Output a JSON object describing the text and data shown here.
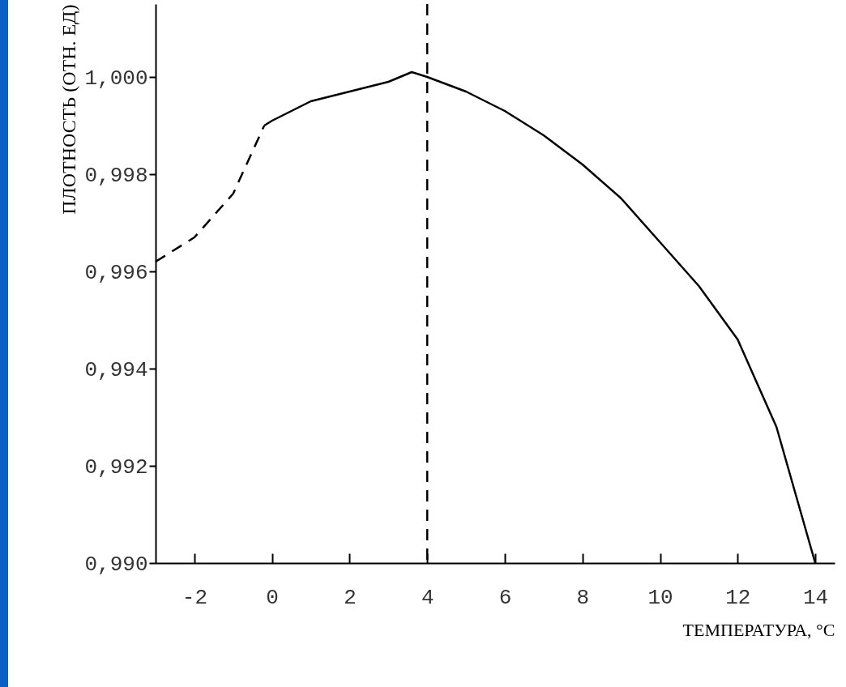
{
  "chart_data": {
    "type": "line",
    "xlabel": "ТЕМПЕРАТУРА, °C",
    "ylabel": "ПЛОТНОСТЬ (ОТН. ЕД)",
    "xlim": [
      -3,
      14.5
    ],
    "xticks": [
      -2,
      0,
      2,
      4,
      6,
      8,
      10,
      12,
      14
    ],
    "ylim": [
      0.99,
      1.0015
    ],
    "yticks": [
      {
        "value": 0.99,
        "label": "0,990"
      },
      {
        "value": 0.992,
        "label": "0,992"
      },
      {
        "value": 0.994,
        "label": "0,994"
      },
      {
        "value": 0.996,
        "label": "0,996"
      },
      {
        "value": 0.998,
        "label": "0,998"
      },
      {
        "value": 1.0,
        "label": "1,000"
      }
    ],
    "grid": false,
    "series": [
      {
        "color": "#000000",
        "line_style": "dashed",
        "x": [
          -3,
          -2,
          -1,
          -0.2
        ],
        "values": [
          0.9962,
          0.9967,
          0.9976,
          0.999
        ]
      },
      {
        "color": "#000000",
        "line_style": "solid",
        "x": [
          -0.2,
          0,
          1,
          2,
          3,
          3.6,
          4,
          5,
          6,
          7,
          8,
          9,
          10,
          11,
          12,
          13,
          14
        ],
        "values": [
          0.999,
          0.9991,
          0.9995,
          0.9997,
          0.9999,
          1.0001,
          1.0,
          0.9997,
          0.9993,
          0.9988,
          0.9982,
          0.9975,
          0.9966,
          0.9957,
          0.9946,
          0.9928,
          0.99
        ]
      }
    ],
    "ref_lines": [
      {
        "axis": "x",
        "value": 4,
        "line_style": "dashed",
        "color": "#000000"
      }
    ]
  }
}
